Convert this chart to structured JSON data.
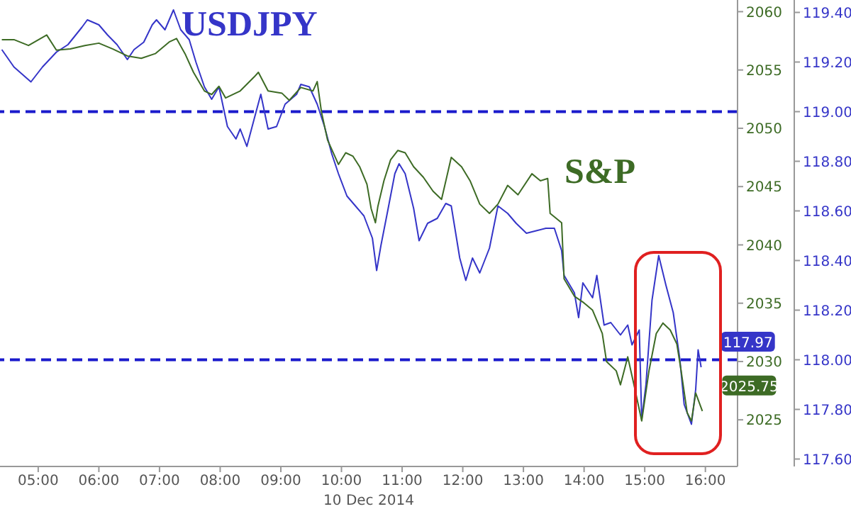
{
  "chart_data": {
    "type": "line",
    "xlabel": "10 Dec 2014",
    "xlim": [
      4.37,
      16.53
    ],
    "xticks": [
      {
        "value": 5,
        "label": "05:00"
      },
      {
        "value": 6,
        "label": "06:00"
      },
      {
        "value": 7,
        "label": "07:00"
      },
      {
        "value": 8,
        "label": "08:00"
      },
      {
        "value": 9,
        "label": "09:00"
      },
      {
        "value": 10,
        "label": "10:00"
      },
      {
        "value": 11,
        "label": "11:00"
      },
      {
        "value": 12,
        "label": "12:00"
      },
      {
        "value": 13,
        "label": "13:00"
      },
      {
        "value": 14,
        "label": "14:00"
      },
      {
        "value": 15,
        "label": "15:00"
      },
      {
        "value": 16,
        "label": "16:00"
      }
    ],
    "ylim": [
      2021,
      2061
    ],
    "yticks": [
      2025,
      2030,
      2035,
      2040,
      2045,
      2050,
      2055,
      2060
    ],
    "y2lim": [
      117.57,
      119.45
    ],
    "y2ticks": [
      {
        "value": 117.6,
        "label": "117.60"
      },
      {
        "value": 117.8,
        "label": "117.80"
      },
      {
        "value": 118,
        "label": "118.00"
      },
      {
        "value": 118.2,
        "label": "118.20"
      },
      {
        "value": 118.4,
        "label": "118.40"
      },
      {
        "value": 118.6,
        "label": "118.60"
      },
      {
        "value": 118.8,
        "label": "118.80"
      },
      {
        "value": 119,
        "label": "119.00"
      },
      {
        "value": 119.2,
        "label": "119.20"
      },
      {
        "value": 119.4,
        "label": "119.40"
      }
    ],
    "ref_lines": [
      {
        "axis": "y2",
        "value": 119,
        "color": "#1a1acc",
        "line_style": "dashed"
      },
      {
        "axis": "y2",
        "value": 118,
        "color": "#1a1acc",
        "line_style": "dashed"
      }
    ],
    "series": [
      {
        "name": "USDJPY",
        "color": "#3535c8",
        "axis": "y2",
        "x": [
          4.4,
          4.6,
          4.88,
          5.07,
          5.3,
          5.49,
          5.72,
          5.81,
          6.0,
          6.14,
          6.3,
          6.47,
          6.58,
          6.74,
          6.88,
          6.95,
          7.09,
          7.23,
          7.35,
          7.49,
          7.6,
          7.74,
          7.86,
          7.98,
          8.12,
          8.26,
          8.33,
          8.44,
          8.56,
          8.67,
          8.79,
          8.93,
          9.07,
          9.26,
          9.33,
          9.47,
          9.6,
          9.72,
          9.84,
          9.95,
          10.09,
          10.23,
          10.37,
          10.51,
          10.58,
          10.65,
          10.77,
          10.88,
          10.95,
          11.05,
          11.19,
          11.28,
          11.42,
          11.58,
          11.72,
          11.81,
          11.95,
          12.05,
          12.16,
          12.28,
          12.44,
          12.58,
          12.74,
          12.88,
          13.05,
          13.21,
          13.37,
          13.51,
          13.63,
          13.67,
          13.84,
          13.91,
          13.98,
          14.14,
          14.21,
          14.33,
          14.44,
          14.6,
          14.72,
          14.79,
          14.91,
          14.95,
          15.02,
          15.12,
          15.23,
          15.35,
          15.47,
          15.58,
          15.65,
          15.77,
          15.84,
          15.88,
          15.93
        ],
        "values": [
          119.25,
          119.18,
          119.12,
          119.18,
          119.24,
          119.27,
          119.34,
          119.37,
          119.35,
          119.31,
          119.27,
          119.21,
          119.25,
          119.28,
          119.35,
          119.37,
          119.33,
          119.41,
          119.33,
          119.29,
          119.2,
          119.1,
          119.05,
          119.1,
          118.94,
          118.89,
          118.93,
          118.86,
          118.97,
          119.07,
          118.93,
          118.94,
          119.03,
          119.07,
          119.11,
          119.1,
          119.03,
          118.94,
          118.83,
          118.75,
          118.66,
          118.62,
          118.58,
          118.49,
          118.36,
          118.46,
          118.61,
          118.75,
          118.79,
          118.75,
          118.61,
          118.48,
          118.55,
          118.57,
          118.63,
          118.62,
          118.41,
          118.32,
          118.41,
          118.35,
          118.45,
          118.62,
          118.59,
          118.55,
          118.51,
          118.52,
          118.53,
          118.53,
          118.44,
          118.34,
          118.27,
          118.17,
          118.31,
          118.25,
          118.34,
          118.14,
          118.15,
          118.1,
          118.14,
          118.06,
          118.12,
          117.76,
          117.9,
          118.24,
          118.42,
          118.3,
          118.19,
          118.0,
          117.82,
          117.74,
          117.88,
          118.04,
          117.97
        ],
        "value_labels": [
          null,
          null,
          null,
          null,
          null,
          null,
          null,
          null,
          null,
          null,
          null,
          null,
          null,
          null,
          null,
          null,
          null,
          null,
          null,
          null,
          null,
          null,
          null,
          null,
          null,
          null,
          null,
          null,
          null,
          null,
          null,
          null,
          null,
          null,
          null,
          null,
          null,
          null,
          null,
          null,
          null,
          null,
          null,
          null,
          null,
          null,
          null,
          null,
          null,
          null,
          null,
          null,
          null,
          null,
          null,
          null,
          null,
          null,
          null,
          null,
          null,
          null,
          null,
          null,
          null,
          null,
          null,
          null,
          null,
          null,
          null,
          null,
          null,
          null,
          null,
          null,
          null,
          null,
          null,
          null,
          null,
          null,
          null,
          null,
          null,
          null,
          null,
          null,
          null,
          null,
          null,
          null,
          "117.97"
        ]
      },
      {
        "name": "S&P",
        "color": "#3d6b25",
        "x": [
          4.4,
          4.6,
          4.84,
          5.14,
          5.3,
          5.53,
          5.77,
          6.0,
          6.23,
          6.47,
          6.7,
          6.93,
          7.16,
          7.28,
          7.42,
          7.56,
          7.74,
          7.86,
          7.98,
          8.09,
          8.33,
          8.56,
          8.63,
          8.79,
          9.02,
          9.14,
          9.33,
          9.53,
          9.6,
          9.67,
          9.77,
          9.95,
          10.07,
          10.19,
          10.3,
          10.42,
          10.49,
          10.56,
          10.6,
          10.7,
          10.81,
          10.93,
          11.05,
          11.19,
          11.35,
          11.51,
          11.65,
          11.81,
          11.98,
          12.12,
          12.28,
          12.44,
          12.58,
          12.74,
          12.91,
          13.14,
          13.28,
          13.4,
          13.44,
          13.63,
          13.67,
          13.84,
          13.98,
          14.14,
          14.3,
          14.37,
          14.53,
          14.6,
          14.72,
          14.84,
          14.95,
          15.07,
          15.19,
          15.3,
          15.42,
          15.53,
          15.6,
          15.7,
          15.77,
          15.84,
          15.95
        ],
        "values": [
          2057.6,
          2057.6,
          2057.1,
          2058.0,
          2056.7,
          2056.8,
          2057.1,
          2057.3,
          2056.8,
          2056.2,
          2056.0,
          2056.4,
          2057.4,
          2057.7,
          2056.4,
          2054.8,
          2053.2,
          2052.9,
          2053.6,
          2052.6,
          2053.2,
          2054.4,
          2054.8,
          2053.2,
          2053.0,
          2052.4,
          2053.5,
          2053.2,
          2054.0,
          2051.4,
          2049.0,
          2046.9,
          2047.9,
          2047.6,
          2046.7,
          2045.2,
          2043.1,
          2041.9,
          2043.3,
          2045.5,
          2047.3,
          2048.1,
          2047.9,
          2046.7,
          2045.8,
          2044.6,
          2043.9,
          2047.5,
          2046.7,
          2045.5,
          2043.5,
          2042.7,
          2043.5,
          2045.1,
          2044.3,
          2046.1,
          2045.5,
          2045.7,
          2042.7,
          2041.9,
          2037.1,
          2035.6,
          2035.1,
          2034.4,
          2032.4,
          2030.0,
          2029.2,
          2028.0,
          2030.4,
          2027.6,
          2024.9,
          2029.2,
          2032.4,
          2033.3,
          2032.7,
          2031.5,
          2029.2,
          2025.6,
          2024.9,
          2027.3,
          2025.75
        ],
        "value_labels": [
          null,
          null,
          null,
          null,
          null,
          null,
          null,
          null,
          null,
          null,
          null,
          null,
          null,
          null,
          null,
          null,
          null,
          null,
          null,
          null,
          null,
          null,
          null,
          null,
          null,
          null,
          null,
          null,
          null,
          null,
          null,
          null,
          null,
          null,
          null,
          null,
          null,
          null,
          null,
          null,
          null,
          null,
          null,
          null,
          null,
          null,
          null,
          null,
          null,
          null,
          null,
          null,
          null,
          null,
          null,
          null,
          null,
          null,
          null,
          null,
          null,
          null,
          null,
          null,
          null,
          null,
          null,
          null,
          null,
          null,
          null,
          null,
          null,
          null,
          null,
          null,
          null,
          null,
          null,
          null,
          "2025.75"
        ]
      }
    ]
  }
}
